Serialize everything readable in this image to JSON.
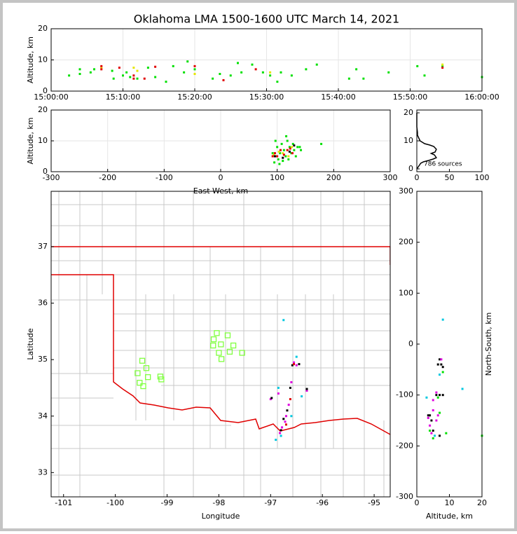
{
  "chart_data": [
    {
      "type": "scatter",
      "title": "Oklahoma LMA 1500-1600 UTC March 14, 2021",
      "ylabel": "Altitude, km",
      "xlim": [
        0,
        60
      ],
      "xticks": [
        {
          "value": 0,
          "label": "15:00:00"
        },
        {
          "value": 10,
          "label": "15:10:00"
        },
        {
          "value": 20,
          "label": "15:20:00"
        },
        {
          "value": 30,
          "label": "15:30:00"
        },
        {
          "value": 40,
          "label": "15:40:00"
        },
        {
          "value": 50,
          "label": "15:50:00"
        },
        {
          "value": 60,
          "label": "16:00:00"
        }
      ],
      "ylim": [
        0,
        20
      ],
      "yticks": [
        0,
        10,
        20
      ],
      "grid": true,
      "series": [
        {
          "color": "#00e000",
          "x": [
            2.5,
            4,
            4,
            5.5,
            6,
            8.5,
            8.7,
            10,
            10.5,
            11,
            12,
            13.5,
            14.5,
            16,
            17,
            18.5,
            19,
            20,
            22.5,
            23.5,
            25,
            26,
            26.5,
            28,
            29.5,
            30.5,
            31.5,
            32,
            33.5,
            35.5,
            37,
            41.5,
            42.5,
            43.5,
            47,
            51,
            52,
            54.5,
            60
          ],
          "values": [
            5,
            7,
            5.5,
            6,
            7,
            6.5,
            4,
            5,
            6,
            4.5,
            4,
            7.5,
            4.5,
            3,
            8,
            6,
            9.5,
            7,
            4,
            5.5,
            5,
            9,
            6,
            8.5,
            6,
            5,
            3,
            6,
            5,
            7,
            8.5,
            4,
            7,
            4,
            6,
            8,
            5,
            8,
            4.5
          ]
        },
        {
          "color": "#e6e600",
          "x": [
            7,
            11.5,
            12,
            20,
            30.5,
            54.5
          ],
          "values": [
            7.5,
            7.5,
            6.5,
            5.5,
            6,
            8.5
          ]
        },
        {
          "color": "#e00000",
          "x": [
            7,
            7,
            9.5,
            11.5,
            11.5,
            13,
            14.5,
            20,
            24,
            28.5,
            54.5
          ],
          "values": [
            8,
            7,
            7.5,
            5,
            4,
            4,
            7.8,
            8,
            3.5,
            7,
            7.5
          ]
        }
      ]
    },
    {
      "type": "scatter",
      "xlabel": "East-West, km",
      "ylabel": "Altitude, km",
      "xlim": [
        -300,
        300
      ],
      "xticks": [
        -300,
        -200,
        -100,
        0,
        100,
        200,
        300
      ],
      "ylim": [
        0,
        20
      ],
      "yticks": [
        0,
        10,
        20
      ],
      "grid": true,
      "series": [
        {
          "color": "#00e000",
          "x": [
            95,
            98,
            100,
            102,
            105,
            108,
            110,
            112,
            115,
            118,
            120,
            122,
            125,
            128,
            130,
            133,
            136,
            140,
            142,
            178,
            92,
            97,
            104,
            116
          ],
          "values": [
            3,
            5,
            8,
            4,
            6,
            9,
            3.5,
            7,
            5,
            10,
            4,
            8,
            6,
            9,
            7,
            5,
            8,
            8,
            7,
            9,
            6,
            10,
            2.5,
            11.5
          ]
        },
        {
          "color": "#e6e600",
          "x": [
            94,
            103,
            110,
            120,
            126
          ],
          "values": [
            5.5,
            6.5,
            6,
            5,
            8
          ]
        },
        {
          "color": "#e00000",
          "x": [
            92,
            96,
            100,
            106,
            112,
            118,
            123,
            127
          ],
          "values": [
            5,
            6,
            5,
            7,
            5.5,
            7,
            7.5,
            6
          ]
        },
        {
          "color": "#000000",
          "x": [
            96,
            110,
            122,
            130
          ],
          "values": [
            5,
            4.5,
            6.5,
            8.5
          ]
        }
      ]
    },
    {
      "type": "line",
      "annotation": "786 sources",
      "xlim": [
        0,
        100
      ],
      "xticks": [
        0,
        50,
        100
      ],
      "ylim": [
        -1,
        21
      ],
      "yticks": [
        0,
        10,
        20
      ],
      "series": [
        {
          "color": "#000000",
          "x": [
            0,
            3,
            6,
            10,
            18,
            25,
            30,
            27,
            22,
            28,
            30,
            26,
            20,
            12,
            5,
            3,
            1,
            1,
            0,
            0,
            0
          ],
          "values": [
            0,
            1,
            2,
            2.5,
            3,
            3.5,
            4,
            5,
            5.5,
            6,
            7,
            8,
            8.5,
            9,
            10,
            11,
            12,
            13,
            15,
            18,
            20
          ]
        }
      ]
    },
    {
      "type": "map",
      "xlabel": "Longitude",
      "ylabel": "Latitude",
      "xlim": [
        -101.24,
        -94.69
      ],
      "xticks": [
        -101,
        -100,
        -99,
        -98,
        -97,
        -96,
        -95
      ],
      "ylim": [
        32.57,
        37.98
      ],
      "yticks": [
        33,
        34,
        35,
        36,
        37
      ],
      "series": [
        {
          "color": "#e000e0",
          "x": [
            -96.55,
            -96.6,
            -96.65,
            -96.7,
            -96.72,
            -96.78,
            -96.82,
            -96.85,
            -97.0,
            -96.3,
            -96.5
          ],
          "values": [
            34.95,
            34.6,
            34.2,
            34.0,
            33.9,
            33.8,
            33.7,
            34.4,
            34.3,
            34.45,
            34.9
          ]
        },
        {
          "color": "#000000",
          "x": [
            -96.58,
            -96.62,
            -96.68,
            -96.75,
            -96.8,
            -96.98,
            -96.3,
            -96.45
          ],
          "values": [
            34.9,
            34.5,
            34.1,
            33.95,
            33.75,
            34.32,
            34.48,
            34.92
          ]
        },
        {
          "color": "#00c8e0",
          "x": [
            -96.75,
            -96.5,
            -96.4,
            -96.9,
            -96.85,
            -96.6,
            -96.8
          ],
          "values": [
            35.7,
            35.05,
            34.35,
            33.58,
            34.5,
            34.0,
            33.65
          ]
        },
        {
          "color": "#e00000",
          "x": [
            -96.7,
            -96.55,
            -96.62
          ],
          "values": [
            33.85,
            34.92,
            34.3
          ]
        },
        {
          "color": "#80ff40",
          "marker": "square",
          "x": [
            -98.04,
            -97.83,
            -98.1,
            -97.96,
            -98.11,
            -97.72,
            -98.0,
            -97.79,
            -97.55,
            -97.95,
            -99.48,
            -99.4,
            -99.57,
            -99.37,
            -99.13,
            -99.53,
            -99.46,
            -99.11
          ],
          "values": [
            35.47,
            35.43,
            35.36,
            35.27,
            35.25,
            35.25,
            35.12,
            35.14,
            35.12,
            35.01,
            34.98,
            34.85,
            34.76,
            34.69,
            34.7,
            34.59,
            34.53,
            34.65
          ]
        }
      ]
    },
    {
      "type": "scatter",
      "xlabel": "Altitude, km",
      "ylabel": "North-South, km",
      "xlim": [
        0,
        20
      ],
      "xticks": [
        0,
        10,
        20
      ],
      "ylim": [
        -300,
        300
      ],
      "yticks": [
        -300,
        -200,
        -100,
        0,
        100,
        200,
        300
      ],
      "series": [
        {
          "color": "#000000",
          "x": [
            7,
            7.5,
            8,
            6.5,
            6,
            7,
            4,
            4.5,
            5,
            3.5,
            8,
            7
          ],
          "values": [
            -30,
            -40,
            -45,
            -40,
            -100,
            -100,
            -140,
            -150,
            -170,
            -140,
            -100,
            -180
          ]
        },
        {
          "color": "#e000e0",
          "x": [
            7.5,
            6,
            5,
            4,
            4.5,
            6,
            3.5,
            5,
            6.5
          ],
          "values": [
            -30,
            -95,
            -110,
            -160,
            -175,
            -150,
            -145,
            -130,
            -140
          ]
        },
        {
          "color": "#00c8e0",
          "x": [
            8,
            14,
            3,
            5.5,
            7
          ],
          "values": [
            48,
            -88,
            -105,
            -180,
            -60
          ]
        },
        {
          "color": "#00e000",
          "x": [
            8,
            6.5,
            4,
            5,
            7,
            9,
            20
          ],
          "values": [
            -55,
            -105,
            -170,
            -185,
            -135,
            -175,
            -180
          ]
        }
      ]
    }
  ]
}
